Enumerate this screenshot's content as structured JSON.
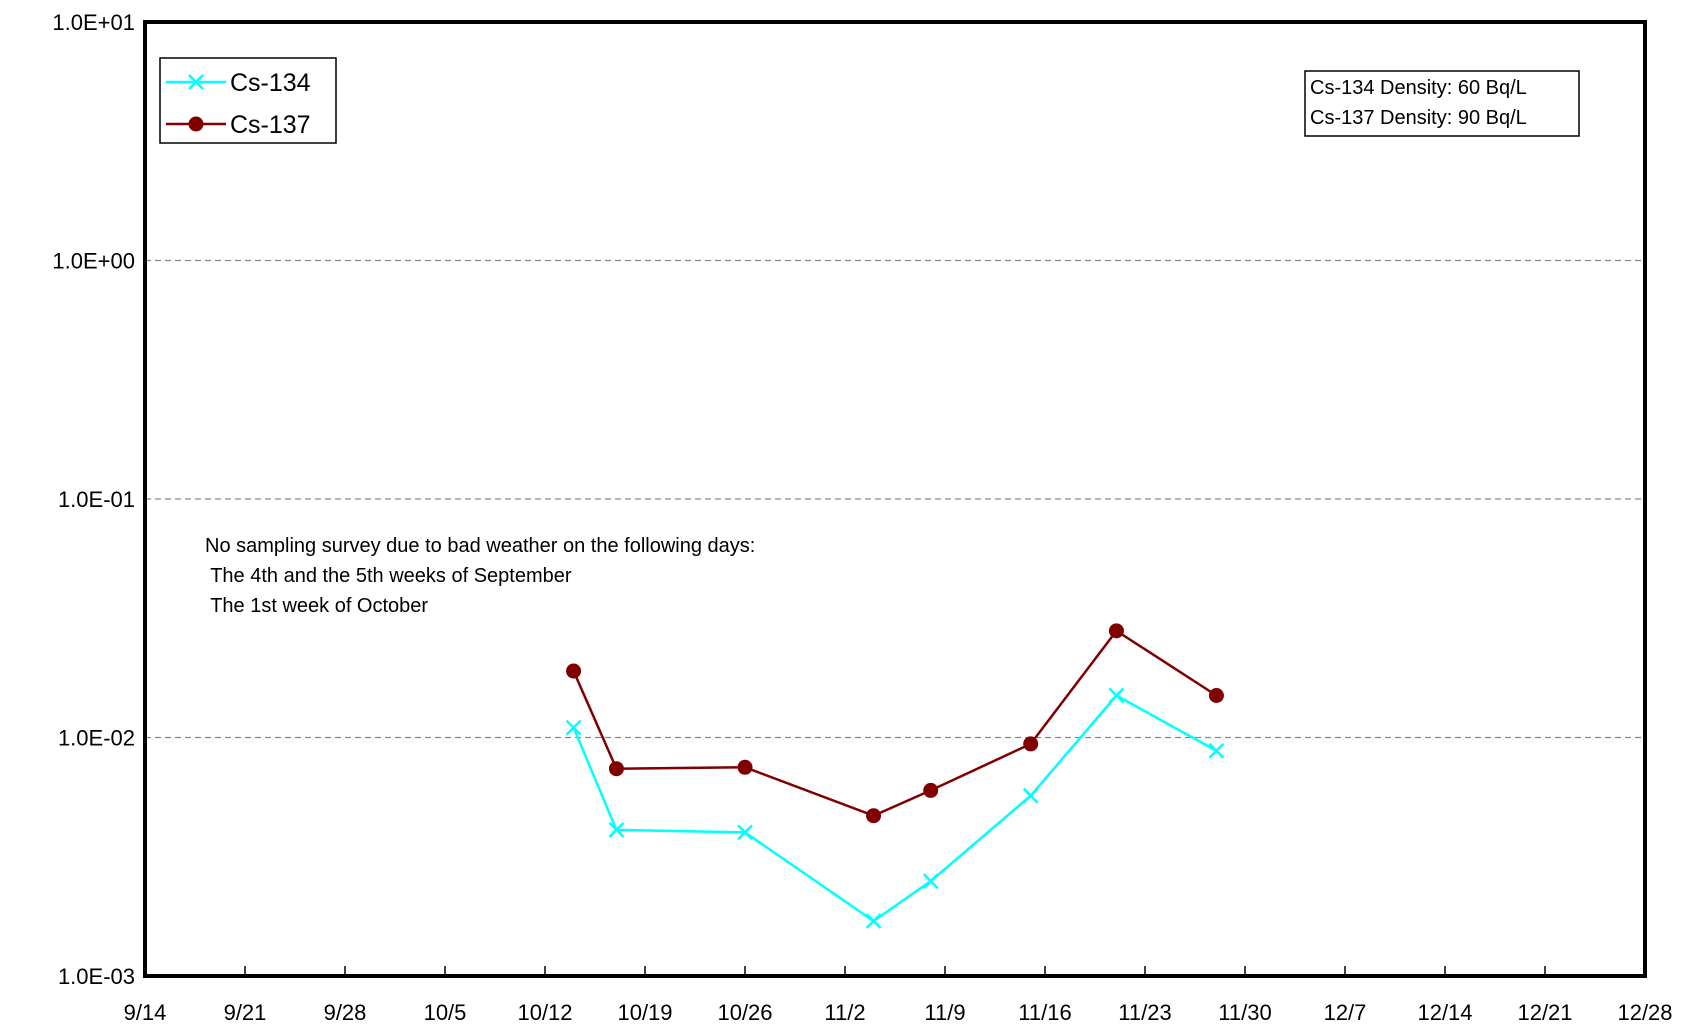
{
  "chart_data": {
    "type": "line",
    "y_scale": "log",
    "ylim": [
      0.001,
      10
    ],
    "xlim": [
      "9/14",
      "12/28"
    ],
    "grid": "horizontal dashed",
    "legend_placement": "top-left",
    "yticks": [
      "1.0E+01",
      "1.0E+00",
      "1.0E-01",
      "1.0E-02",
      "1.0E-03"
    ],
    "xticks": [
      "9/14",
      "9/21",
      "9/28",
      "10/5",
      "10/12",
      "10/19",
      "10/26",
      "11/2",
      "11/9",
      "11/16",
      "11/23",
      "11/30",
      "12/7",
      "12/14",
      "12/21",
      "12/28"
    ],
    "series": [
      {
        "name": "Cs-134",
        "color": "#00FFFF",
        "marker": "x",
        "x": [
          "10/14",
          "10/17",
          "10/26",
          "11/4",
          "11/8",
          "11/15",
          "11/21",
          "11/28"
        ],
        "values": [
          0.011,
          0.0041,
          0.004,
          0.0017,
          0.0025,
          0.0057,
          0.015,
          0.0088
        ]
      },
      {
        "name": "Cs-137",
        "color": "#800000",
        "marker": "circle",
        "x": [
          "10/14",
          "10/17",
          "10/26",
          "11/4",
          "11/8",
          "11/15",
          "11/21",
          "11/28"
        ],
        "values": [
          0.019,
          0.0074,
          0.0075,
          0.0047,
          0.006,
          0.0094,
          0.028,
          0.015
        ]
      }
    ],
    "annotations": [
      "No sampling survey due to bad weather on the following days:",
      " The 4th and the 5th weeks of September",
      " The 1st week of October"
    ],
    "info_box": [
      "Cs-134 Density: 60 Bq/L",
      "Cs-137 Density: 90 Bq/L"
    ]
  }
}
